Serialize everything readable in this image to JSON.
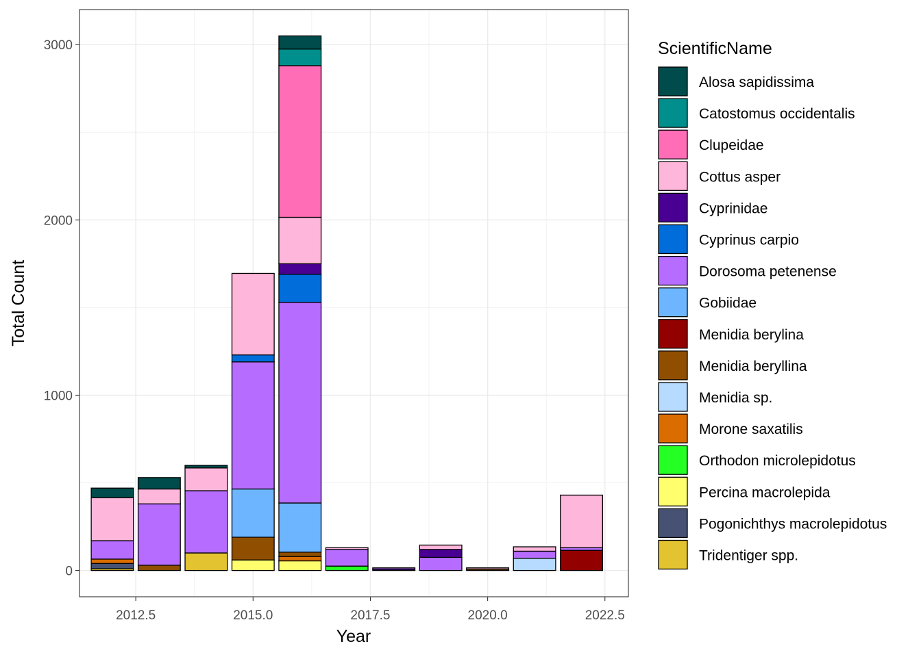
{
  "chart_data": {
    "type": "bar",
    "stacked": true,
    "xlabel": "Year",
    "ylabel": "Total Count",
    "xlim": [
      2011.3,
      2023.0
    ],
    "ylim": [
      -150,
      3200
    ],
    "x_ticks": [
      2012.5,
      2015.0,
      2017.5,
      2020.0,
      2022.5
    ],
    "x_tick_labels": [
      "2012.5",
      "2015.0",
      "2017.5",
      "2020.0",
      "2022.5"
    ],
    "y_ticks": [
      0,
      1000,
      2000,
      3000
    ],
    "y_tick_labels": [
      "0",
      "1000",
      "2000",
      "3000"
    ],
    "grid": true,
    "legend_position": "right",
    "legend_title": "ScientificName",
    "species": [
      {
        "name": "Alosa sapidissima",
        "color": "#004b4b"
      },
      {
        "name": "Catostomus occidentalis",
        "color": "#008f8c"
      },
      {
        "name": "Clupeidae",
        "color": "#ff6db6"
      },
      {
        "name": "Cottus asper",
        "color": "#ffb6db"
      },
      {
        "name": "Cyprinidae",
        "color": "#490092"
      },
      {
        "name": "Cyprinus carpio",
        "color": "#006ddb"
      },
      {
        "name": "Dorosoma petenense",
        "color": "#b66dff"
      },
      {
        "name": "Gobiidae",
        "color": "#6db6ff"
      },
      {
        "name": "Menidia berylina",
        "color": "#920000"
      },
      {
        "name": "Menidia beryllina",
        "color": "#8f4e00"
      },
      {
        "name": "Menidia sp.",
        "color": "#b6dbff"
      },
      {
        "name": "Morone saxatilis",
        "color": "#db6d00"
      },
      {
        "name": "Orthodon microlepidotus",
        "color": "#24ff24"
      },
      {
        "name": "Percina macrolepida",
        "color": "#ffff6d"
      },
      {
        "name": "Pogonichthys macrolepidotus",
        "color": "#465173"
      },
      {
        "name": "Tridentiger spp.",
        "color": "#e4c330"
      }
    ],
    "bars": [
      {
        "x": 2012,
        "segments": [
          {
            "species": "Tridentiger spp.",
            "value": 10
          },
          {
            "species": "Pogonichthys macrolepidotus",
            "value": 30
          },
          {
            "species": "Morone saxatilis",
            "value": 25
          },
          {
            "species": "Dorosoma petenense",
            "value": 105
          },
          {
            "species": "Cottus asper",
            "value": 245
          },
          {
            "species": "Alosa sapidissima",
            "value": 55
          }
        ]
      },
      {
        "x": 2013,
        "segments": [
          {
            "species": "Menidia beryllina",
            "value": 30
          },
          {
            "species": "Dorosoma petenense",
            "value": 350
          },
          {
            "species": "Cottus asper",
            "value": 85
          },
          {
            "species": "Alosa sapidissima",
            "value": 65
          }
        ]
      },
      {
        "x": 2014,
        "segments": [
          {
            "species": "Tridentiger spp.",
            "value": 100
          },
          {
            "species": "Dorosoma petenense",
            "value": 355
          },
          {
            "species": "Cottus asper",
            "value": 130
          },
          {
            "species": "Alosa sapidissima",
            "value": 15
          }
        ]
      },
      {
        "x": 2015,
        "segments": [
          {
            "species": "Percina macrolepida",
            "value": 60
          },
          {
            "species": "Menidia beryllina",
            "value": 130
          },
          {
            "species": "Gobiidae",
            "value": 275
          },
          {
            "species": "Dorosoma petenense",
            "value": 725
          },
          {
            "species": "Cyprinus carpio",
            "value": 40
          },
          {
            "species": "Cottus asper",
            "value": 465
          }
        ]
      },
      {
        "x": 2016,
        "segments": [
          {
            "species": "Percina macrolepida",
            "value": 55
          },
          {
            "species": "Morone saxatilis",
            "value": 25
          },
          {
            "species": "Menidia beryllina",
            "value": 25
          },
          {
            "species": "Gobiidae",
            "value": 280
          },
          {
            "species": "Dorosoma petenense",
            "value": 1145
          },
          {
            "species": "Cyprinus carpio",
            "value": 160
          },
          {
            "species": "Cyprinidae",
            "value": 60
          },
          {
            "species": "Cottus asper",
            "value": 265
          },
          {
            "species": "Clupeidae",
            "value": 865
          },
          {
            "species": "Catostomus occidentalis",
            "value": 95
          },
          {
            "species": "Alosa sapidissima",
            "value": 75
          }
        ]
      },
      {
        "x": 2017,
        "segments": [
          {
            "species": "Orthodon microlepidotus",
            "value": 25
          },
          {
            "species": "Dorosoma petenense",
            "value": 95
          },
          {
            "species": "Cottus asper",
            "value": 10
          }
        ]
      },
      {
        "x": 2018,
        "segments": [
          {
            "species": "Cyprinidae",
            "value": 8
          },
          {
            "species": "Dorosoma petenense",
            "value": 7
          }
        ]
      },
      {
        "x": 2019,
        "segments": [
          {
            "species": "Dorosoma petenense",
            "value": 75
          },
          {
            "species": "Cyprinidae",
            "value": 45
          },
          {
            "species": "Cottus asper",
            "value": 25
          }
        ]
      },
      {
        "x": 2020,
        "segments": [
          {
            "species": "Menidia beryllina",
            "value": 8
          },
          {
            "species": "Cottus asper",
            "value": 7
          }
        ]
      },
      {
        "x": 2021,
        "segments": [
          {
            "species": "Menidia sp.",
            "value": 70
          },
          {
            "species": "Dorosoma petenense",
            "value": 40
          },
          {
            "species": "Cottus asper",
            "value": 25
          }
        ]
      },
      {
        "x": 2022,
        "segments": [
          {
            "species": "Menidia berylina",
            "value": 115
          },
          {
            "species": "Dorosoma petenense",
            "value": 15
          },
          {
            "species": "Cottus asper",
            "value": 300
          }
        ]
      }
    ]
  }
}
